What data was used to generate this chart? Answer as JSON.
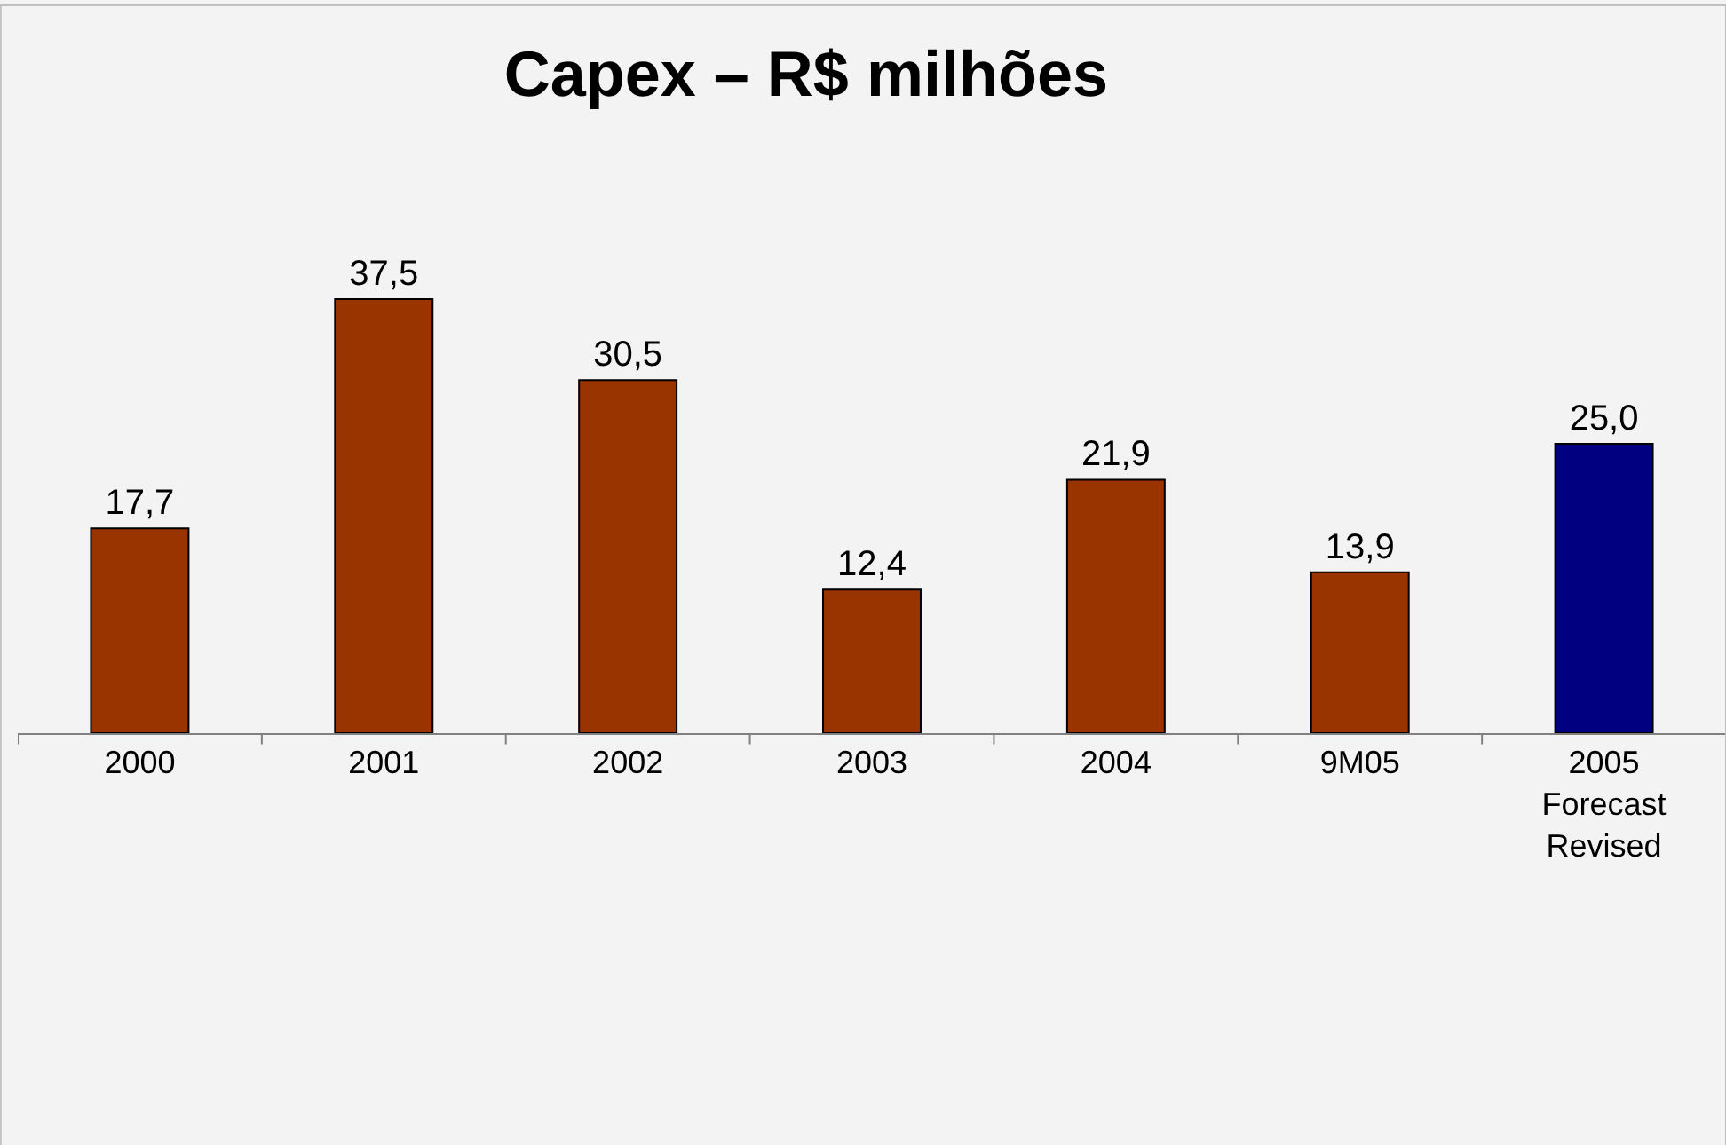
{
  "chart_data": {
    "type": "bar",
    "title": "Capex – R$ milhões",
    "categories": [
      "2000",
      "2001",
      "2002",
      "2003",
      "2004",
      "9M05",
      "2005\nForecast\nRevised"
    ],
    "values": [
      17.7,
      37.5,
      30.5,
      12.4,
      21.9,
      13.9,
      25.0
    ],
    "colors": [
      "#993300",
      "#993300",
      "#993300",
      "#993300",
      "#993300",
      "#993300",
      "#000080"
    ],
    "value_labels": [
      "17,7",
      "37,5",
      "30,5",
      "12,4",
      "21,9",
      "13,9",
      "25,0"
    ],
    "relative": false,
    "grid": false,
    "legend": false
  }
}
